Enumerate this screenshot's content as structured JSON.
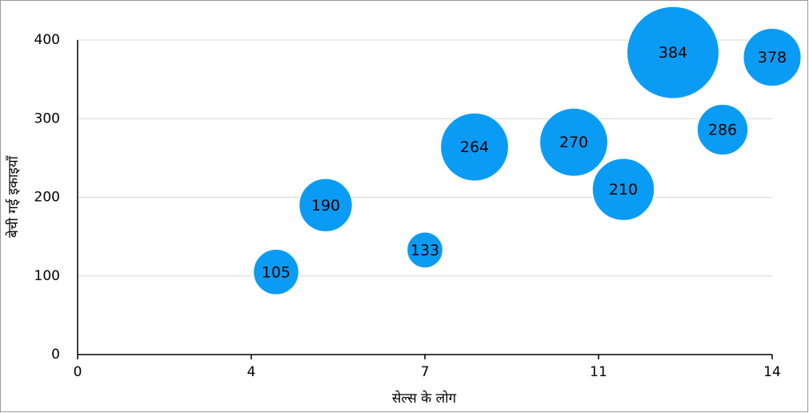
{
  "chart_data": {
    "type": "bubble",
    "x_label": "सेल्स के लोग",
    "y_label": "बेची गई इकाइयाँ",
    "x": [
      4,
      5,
      7,
      8,
      10,
      11,
      12,
      13,
      14
    ],
    "values": [
      105,
      190,
      133,
      264,
      270,
      210,
      384,
      286,
      378
    ],
    "sizes": [
      8,
      11,
      5,
      18,
      18,
      15,
      33,
      10,
      13
    ],
    "color": "#0a9cf5",
    "xlim": [
      0,
      14
    ],
    "xticks": [
      0,
      {
        "value": 3.5,
        "label": "4"
      },
      7,
      {
        "value": 10.5,
        "label": "11"
      },
      14
    ],
    "ylim": [
      0,
      400
    ],
    "yticks": [
      0,
      100,
      200,
      300,
      400
    ],
    "grid": true
  }
}
